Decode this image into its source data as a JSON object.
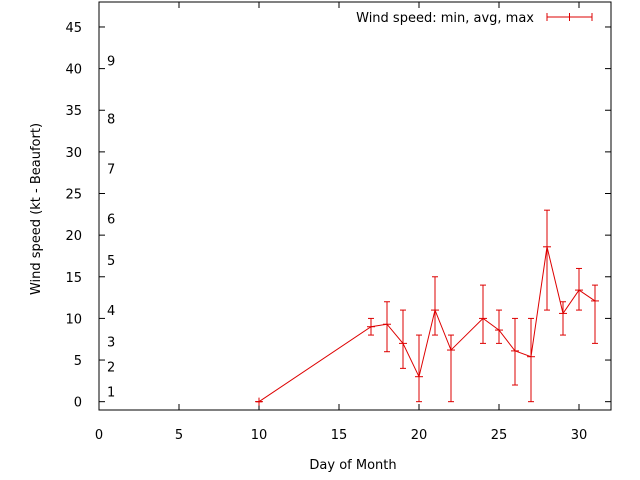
{
  "chart_data": {
    "type": "line",
    "title": "",
    "xlabel": "Day of Month",
    "ylabel": "Wind speed (kt - Beaufort)",
    "xlim": [
      0,
      32
    ],
    "ylim": [
      -1,
      48
    ],
    "x_ticks": [
      0,
      5,
      10,
      15,
      20,
      25,
      30
    ],
    "y_ticks": [
      0,
      5,
      10,
      15,
      20,
      25,
      30,
      35,
      40,
      45
    ],
    "grid": false,
    "legend_position": "top-right",
    "beaufort_scale": [
      {
        "label": "1",
        "value": 1.2
      },
      {
        "label": "2",
        "value": 4.2
      },
      {
        "label": "3",
        "value": 7.2
      },
      {
        "label": "4",
        "value": 11
      },
      {
        "label": "5",
        "value": 17
      },
      {
        "label": "6",
        "value": 22
      },
      {
        "label": "7",
        "value": 28
      },
      {
        "label": "8",
        "value": 34
      },
      {
        "label": "9",
        "value": 41
      }
    ],
    "series": [
      {
        "name": "Wind speed: min, avg, max",
        "color": "#dd0000",
        "points": [
          {
            "x": 10,
            "y": 0,
            "min": 0,
            "max": 0
          },
          {
            "x": 17,
            "y": 9,
            "min": 8,
            "max": 10
          },
          {
            "x": 18,
            "y": 9.3,
            "min": 6,
            "max": 12
          },
          {
            "x": 19,
            "y": 7,
            "min": 4,
            "max": 11
          },
          {
            "x": 20,
            "y": 3,
            "min": 0,
            "max": 8
          },
          {
            "x": 21,
            "y": 11,
            "min": 8,
            "max": 15
          },
          {
            "x": 22,
            "y": 6.2,
            "min": 0,
            "max": 8
          },
          {
            "x": 24,
            "y": 10,
            "min": 7,
            "max": 14
          },
          {
            "x": 25,
            "y": 8.6,
            "min": 7,
            "max": 11
          },
          {
            "x": 26,
            "y": 6.1,
            "min": 2,
            "max": 10
          },
          {
            "x": 27,
            "y": 5.4,
            "min": 0,
            "max": 10
          },
          {
            "x": 28,
            "y": 18.6,
            "min": 11,
            "max": 23
          },
          {
            "x": 29,
            "y": 10.6,
            "min": 8,
            "max": 12
          },
          {
            "x": 30,
            "y": 13.4,
            "min": 11,
            "max": 16
          },
          {
            "x": 31,
            "y": 12.1,
            "min": 7,
            "max": 14
          }
        ]
      }
    ]
  }
}
